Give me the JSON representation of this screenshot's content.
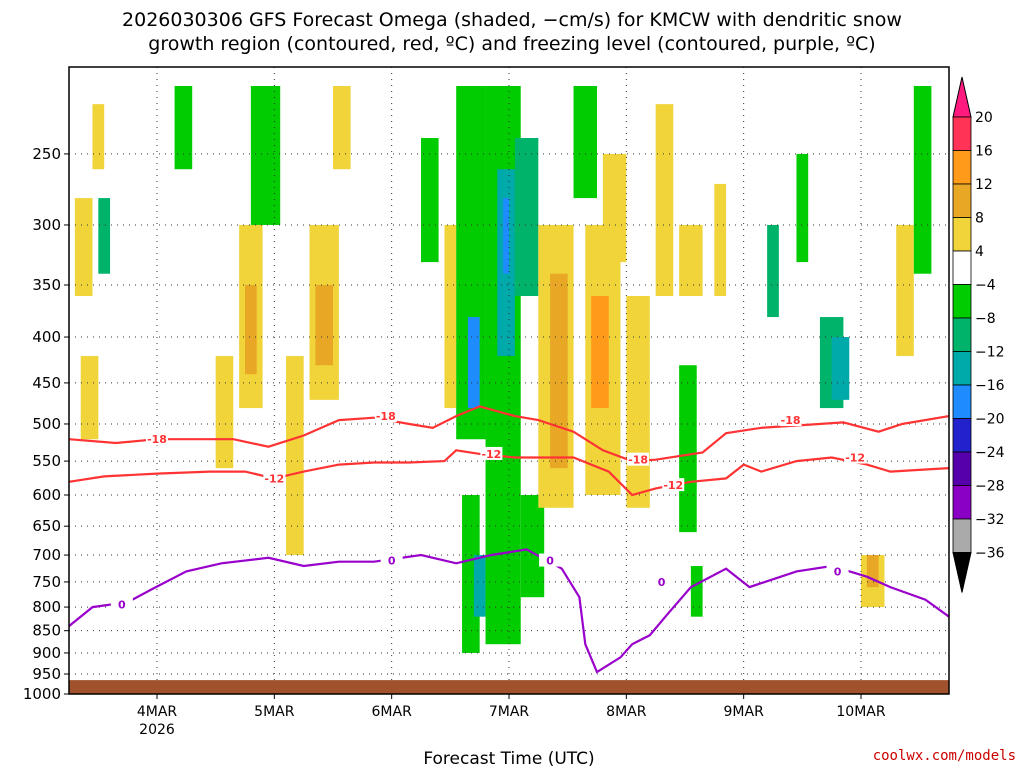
{
  "chart_data": {
    "type": "heatmap",
    "title_lines": [
      "2026030306 GFS Forecast Omega (shaded, −cm/s) for KMCW with dendritic snow",
      "growth region (contoured, red, ºC) and freezing level (contoured, purple, ºC)"
    ],
    "xlabel": "Forecast Time (UTC)",
    "ylabel": "",
    "credit": "coolwx.com/models",
    "x_ticks": [
      {
        "t": 0.75,
        "label": "4MAR",
        "sub": "2026"
      },
      {
        "t": 1.75,
        "label": "5MAR",
        "sub": ""
      },
      {
        "t": 2.75,
        "label": "6MAR",
        "sub": ""
      },
      {
        "t": 3.75,
        "label": "7MAR",
        "sub": ""
      },
      {
        "t": 4.75,
        "label": "8MAR",
        "sub": ""
      },
      {
        "t": 5.75,
        "label": "9MAR",
        "sub": ""
      },
      {
        "t": 6.75,
        "label": "10MAR",
        "sub": ""
      }
    ],
    "xlim_days_from_init": [
      0,
      7.5
    ],
    "y_ticks": [
      250,
      300,
      350,
      400,
      450,
      500,
      550,
      600,
      650,
      700,
      750,
      800,
      850,
      900,
      950,
      1000
    ],
    "ylim_hPa": [
      1000,
      200
    ],
    "colorbar": {
      "labels": [
        "20",
        "16",
        "12",
        "8",
        "4",
        "−4",
        "−8",
        "−12",
        "−16",
        "−20",
        "−24",
        "−28",
        "−32",
        "−36"
      ],
      "colors": [
        "#ff3355",
        "#ff9a1a",
        "#e8a826",
        "#f0d43a",
        "#ffffff",
        "#00cc00",
        "#00b36b",
        "#00aaaa",
        "#1e8cff",
        "#2222cc",
        "#5500aa",
        "#8a00c4",
        "#aaaaaa",
        "#000000"
      ],
      "top_triangle_color": "#ff1a80",
      "bottom_triangle_color": "#000000"
    },
    "series": [
      {
        "name": "-18",
        "color": "#ff3333",
        "points": [
          [
            0,
            520
          ],
          [
            0.4,
            525
          ],
          [
            0.75,
            520
          ],
          [
            1.4,
            520
          ],
          [
            1.7,
            530
          ],
          [
            2.0,
            515
          ],
          [
            2.3,
            495
          ],
          [
            2.6,
            492
          ],
          [
            2.9,
            500
          ],
          [
            3.1,
            505
          ],
          [
            3.3,
            490
          ],
          [
            3.5,
            478
          ],
          [
            3.8,
            490
          ],
          [
            4.0,
            495
          ],
          [
            4.3,
            510
          ],
          [
            4.55,
            535
          ],
          [
            4.8,
            550
          ],
          [
            5.0,
            548
          ],
          [
            5.4,
            538
          ],
          [
            5.6,
            512
          ],
          [
            5.9,
            505
          ],
          [
            6.2,
            502
          ],
          [
            6.6,
            498
          ],
          [
            6.9,
            510
          ],
          [
            7.1,
            500
          ],
          [
            7.5,
            490
          ]
        ]
      },
      {
        "name": "-12",
        "color": "#ff3333",
        "points": [
          [
            0,
            580
          ],
          [
            0.3,
            572
          ],
          [
            0.75,
            568
          ],
          [
            1.2,
            565
          ],
          [
            1.5,
            565
          ],
          [
            1.75,
            575
          ],
          [
            2.0,
            565
          ],
          [
            2.3,
            555
          ],
          [
            2.6,
            552
          ],
          [
            2.9,
            552
          ],
          [
            3.2,
            550
          ],
          [
            3.3,
            535
          ],
          [
            3.5,
            540
          ],
          [
            3.8,
            545
          ],
          [
            4.0,
            545
          ],
          [
            4.3,
            545
          ],
          [
            4.6,
            565
          ],
          [
            4.8,
            600
          ],
          [
            5.0,
            590
          ],
          [
            5.3,
            580
          ],
          [
            5.6,
            575
          ],
          [
            5.75,
            555
          ],
          [
            5.9,
            565
          ],
          [
            6.2,
            550
          ],
          [
            6.5,
            545
          ],
          [
            6.8,
            555
          ],
          [
            7.0,
            565
          ],
          [
            7.3,
            562
          ],
          [
            7.5,
            560
          ]
        ]
      },
      {
        "name": "0",
        "color": "#9900cc",
        "points": [
          [
            0,
            840
          ],
          [
            0.2,
            800
          ],
          [
            0.5,
            790
          ],
          [
            0.7,
            765
          ],
          [
            1.0,
            730
          ],
          [
            1.3,
            715
          ],
          [
            1.7,
            705
          ],
          [
            2.0,
            720
          ],
          [
            2.3,
            712
          ],
          [
            2.6,
            712
          ],
          [
            3.0,
            700
          ],
          [
            3.3,
            715
          ],
          [
            3.6,
            700
          ],
          [
            3.9,
            690
          ],
          [
            4.2,
            725
          ],
          [
            4.35,
            780
          ],
          [
            4.4,
            880
          ],
          [
            4.5,
            945
          ],
          [
            4.7,
            910
          ],
          [
            4.8,
            880
          ],
          [
            4.95,
            860
          ],
          [
            5.1,
            815
          ],
          [
            5.3,
            760
          ],
          [
            5.6,
            725
          ],
          [
            5.8,
            760
          ],
          [
            6.2,
            730
          ],
          [
            6.5,
            720
          ],
          [
            6.8,
            740
          ],
          [
            7.0,
            760
          ],
          [
            7.3,
            785
          ],
          [
            7.5,
            820
          ]
        ]
      }
    ],
    "labels": [
      {
        "text": "-18",
        "t": 0.75,
        "p": 520,
        "color": "#ff3333"
      },
      {
        "text": "-12",
        "t": 1.75,
        "p": 575,
        "color": "#ff3333"
      },
      {
        "text": "-18",
        "t": 2.7,
        "p": 490,
        "color": "#ff3333"
      },
      {
        "text": "-12",
        "t": 3.6,
        "p": 540,
        "color": "#ff3333"
      },
      {
        "text": "-18",
        "t": 4.85,
        "p": 548,
        "color": "#ff3333"
      },
      {
        "text": "-12",
        "t": 5.15,
        "p": 585,
        "color": "#ff3333"
      },
      {
        "text": "-18",
        "t": 6.15,
        "p": 495,
        "color": "#ff3333"
      },
      {
        "text": "-12",
        "t": 6.7,
        "p": 545,
        "color": "#ff3333"
      },
      {
        "text": "0",
        "t": 0.45,
        "p": 795,
        "color": "#9900cc"
      },
      {
        "text": "0",
        "t": 2.75,
        "p": 710,
        "color": "#9900cc"
      },
      {
        "text": "0",
        "t": 4.1,
        "p": 710,
        "color": "#9900cc"
      },
      {
        "text": "0",
        "t": 5.05,
        "p": 750,
        "color": "#9900cc"
      },
      {
        "text": "0",
        "t": 6.55,
        "p": 730,
        "color": "#9900cc"
      }
    ],
    "omega_cells": [
      {
        "t0": 0.05,
        "t1": 0.2,
        "p0": 280,
        "p1": 360,
        "v": 6
      },
      {
        "t0": 0.1,
        "t1": 0.25,
        "p0": 420,
        "p1": 520,
        "v": 5
      },
      {
        "t0": 0.25,
        "t1": 0.35,
        "p0": 280,
        "p1": 340,
        "v": -8
      },
      {
        "t0": 0.2,
        "t1": 0.3,
        "p0": 220,
        "p1": 260,
        "v": 5
      },
      {
        "t0": 0.9,
        "t1": 1.05,
        "p0": 210,
        "p1": 260,
        "v": -6
      },
      {
        "t0": 1.45,
        "t1": 1.65,
        "p0": 300,
        "p1": 480,
        "v": 6
      },
      {
        "t0": 1.5,
        "t1": 1.6,
        "p0": 350,
        "p1": 440,
        "v": 9
      },
      {
        "t0": 1.25,
        "t1": 1.4,
        "p0": 420,
        "p1": 560,
        "v": 6
      },
      {
        "t0": 1.55,
        "t1": 1.8,
        "p0": 210,
        "p1": 300,
        "v": -7
      },
      {
        "t0": 2.05,
        "t1": 2.3,
        "p0": 300,
        "p1": 470,
        "v": 6
      },
      {
        "t0": 2.1,
        "t1": 2.25,
        "p0": 350,
        "p1": 430,
        "v": 10
      },
      {
        "t0": 1.85,
        "t1": 2.0,
        "p0": 420,
        "p1": 700,
        "v": 5
      },
      {
        "t0": 2.25,
        "t1": 2.4,
        "p0": 210,
        "p1": 260,
        "v": 5
      },
      {
        "t0": 3.0,
        "t1": 3.15,
        "p0": 240,
        "p1": 330,
        "v": -7
      },
      {
        "t0": 3.2,
        "t1": 3.3,
        "p0": 300,
        "p1": 480,
        "v": 5
      },
      {
        "t0": 3.3,
        "t1": 3.55,
        "p0": 210,
        "p1": 520,
        "v": -7
      },
      {
        "t0": 3.4,
        "t1": 3.5,
        "p0": 380,
        "p1": 480,
        "v": -18
      },
      {
        "t0": 3.35,
        "t1": 3.5,
        "p0": 600,
        "p1": 900,
        "v": -7
      },
      {
        "t0": 3.45,
        "t1": 3.55,
        "p0": 700,
        "p1": 820,
        "v": -12
      },
      {
        "t0": 3.55,
        "t1": 3.85,
        "p0": 210,
        "p1": 880,
        "v": -6
      },
      {
        "t0": 3.65,
        "t1": 3.8,
        "p0": 260,
        "p1": 420,
        "v": -12
      },
      {
        "t0": 3.7,
        "t1": 3.75,
        "p0": 280,
        "p1": 340,
        "v": -18
      },
      {
        "t0": 3.8,
        "t1": 4.0,
        "p0": 240,
        "p1": 360,
        "v": -9
      },
      {
        "t0": 3.85,
        "t1": 4.05,
        "p0": 600,
        "p1": 780,
        "v": -7
      },
      {
        "t0": 4.0,
        "t1": 4.3,
        "p0": 300,
        "p1": 620,
        "v": 6
      },
      {
        "t0": 4.1,
        "t1": 4.25,
        "p0": 340,
        "p1": 560,
        "v": 10
      },
      {
        "t0": 4.4,
        "t1": 4.7,
        "p0": 300,
        "p1": 600,
        "v": 6
      },
      {
        "t0": 4.45,
        "t1": 4.6,
        "p0": 360,
        "p1": 480,
        "v": 13
      },
      {
        "t0": 4.3,
        "t1": 4.5,
        "p0": 210,
        "p1": 280,
        "v": -7
      },
      {
        "t0": 4.75,
        "t1": 4.95,
        "p0": 360,
        "p1": 620,
        "v": 5
      },
      {
        "t0": 4.55,
        "t1": 4.75,
        "p0": 250,
        "p1": 330,
        "v": 5
      },
      {
        "t0": 5.0,
        "t1": 5.15,
        "p0": 220,
        "p1": 360,
        "v": 5
      },
      {
        "t0": 5.2,
        "t1": 5.35,
        "p0": 430,
        "p1": 660,
        "v": -6
      },
      {
        "t0": 5.2,
        "t1": 5.4,
        "p0": 300,
        "p1": 360,
        "v": 5
      },
      {
        "t0": 5.3,
        "t1": 5.4,
        "p0": 720,
        "p1": 820,
        "v": -6
      },
      {
        "t0": 5.5,
        "t1": 5.6,
        "p0": 270,
        "p1": 360,
        "v": 5
      },
      {
        "t0": 5.95,
        "t1": 6.05,
        "p0": 300,
        "p1": 380,
        "v": -10
      },
      {
        "t0": 6.2,
        "t1": 6.3,
        "p0": 250,
        "p1": 330,
        "v": -7
      },
      {
        "t0": 6.4,
        "t1": 6.6,
        "p0": 380,
        "p1": 480,
        "v": -8
      },
      {
        "t0": 6.5,
        "t1": 6.65,
        "p0": 400,
        "p1": 470,
        "v": -13
      },
      {
        "t0": 6.75,
        "t1": 6.95,
        "p0": 700,
        "p1": 800,
        "v": 5
      },
      {
        "t0": 6.8,
        "t1": 6.9,
        "p0": 700,
        "p1": 760,
        "v": 9
      },
      {
        "t0": 7.05,
        "t1": 7.2,
        "p0": 300,
        "p1": 420,
        "v": 5
      },
      {
        "t0": 7.2,
        "t1": 7.35,
        "p0": 210,
        "p1": 340,
        "v": -7
      }
    ],
    "surface_top_hPa": 965,
    "surface_color": "#a0522d"
  }
}
